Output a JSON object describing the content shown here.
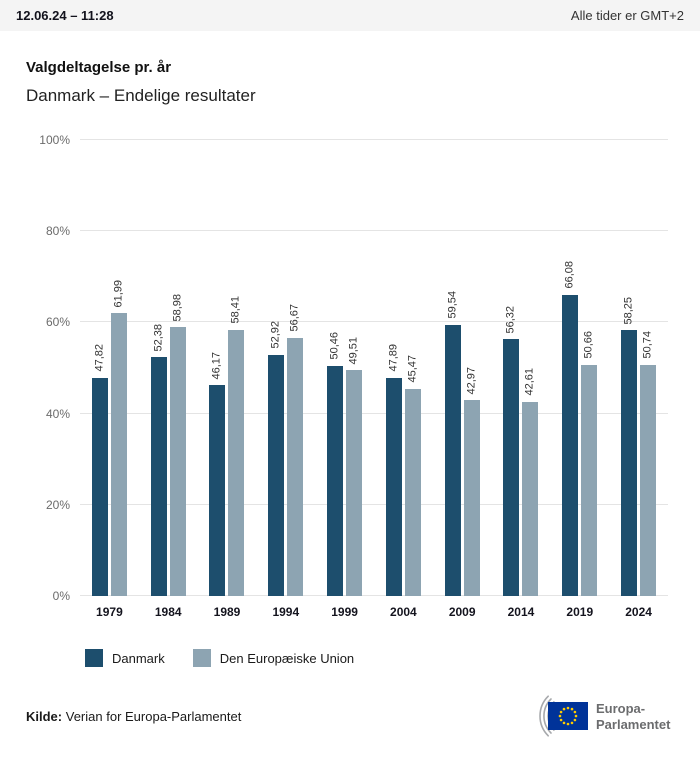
{
  "header": {
    "timestamp": "12.06.24 – 11:28",
    "timezone_note": "Alle tider er GMT+2"
  },
  "title": "Valgdeltagelse pr. år",
  "subtitle": "Danmark – Endelige resultater",
  "chart_data": {
    "type": "bar",
    "title": "Valgdeltagelse pr. år — Danmark – Endelige resultater",
    "categories": [
      "1979",
      "1984",
      "1989",
      "1994",
      "1999",
      "2004",
      "2009",
      "2014",
      "2019",
      "2024"
    ],
    "series": [
      {
        "name": "Danmark",
        "color": "#1d4e6d",
        "values": [
          47.82,
          52.38,
          46.17,
          52.92,
          50.46,
          47.89,
          59.54,
          56.32,
          66.08,
          58.25
        ],
        "labels": [
          "47,82",
          "52,38",
          "46,17",
          "52,92",
          "50,46",
          "47,89",
          "59,54",
          "56,32",
          "66,08",
          "58,25"
        ]
      },
      {
        "name": "Den Europæiske Union",
        "color": "#8da4b2",
        "values": [
          61.99,
          58.98,
          58.41,
          56.67,
          49.51,
          45.47,
          42.97,
          42.61,
          50.66,
          50.74
        ],
        "labels": [
          "61,99",
          "58,98",
          "58,41",
          "56,67",
          "49,51",
          "45,47",
          "42,97",
          "42,61",
          "50,66",
          "50,74"
        ]
      }
    ],
    "ylim": [
      0,
      100
    ],
    "yticks": [
      "0%",
      "20%",
      "40%",
      "60%",
      "80%",
      "100%"
    ],
    "grid": true,
    "legend_position": "bottom"
  },
  "footer": {
    "source_label": "Kilde:",
    "source_text": "Verian for Europa-Parlamentet",
    "logo_line1": "Europa-",
    "logo_line2": "Parlamentet"
  },
  "colors": {
    "eu_flag_blue": "#003399",
    "eu_star_yellow": "#ffcc00",
    "logo_gray": "#6b6c6e"
  }
}
